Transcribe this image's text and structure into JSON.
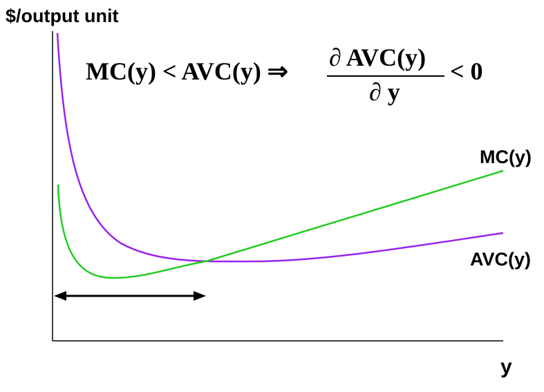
{
  "axes": {
    "ylabel": "$/output unit",
    "xlabel": "y"
  },
  "curves": {
    "mc": {
      "label": "MC(y)",
      "color": "#22cc22"
    },
    "avc": {
      "label": "AVC(y)",
      "color": "#9922ee"
    }
  },
  "equation": {
    "left": "MC(y) < AVC(y) ⇒",
    "numerator": "∂ AVC(y)",
    "denominator": "∂ y",
    "right": "< 0"
  },
  "arrow": {
    "color": "#000000"
  }
}
